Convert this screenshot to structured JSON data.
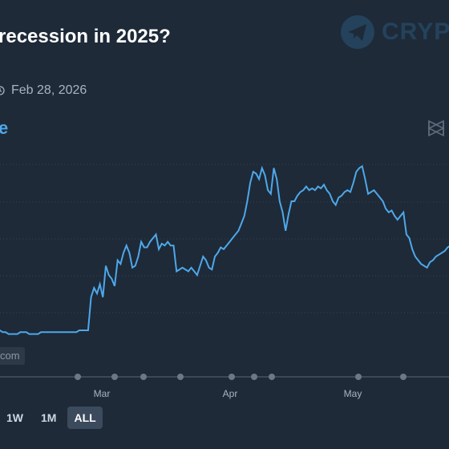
{
  "header": {
    "title": "recession in 2025?",
    "date": "Feb 28, 2026",
    "series_label": "e"
  },
  "brand": {
    "text": "CRYP",
    "icon": "telegram-plane-icon"
  },
  "watermark": {
    "text": "com"
  },
  "range_buttons": [
    {
      "label": "1W",
      "active": false
    },
    {
      "label": "1M",
      "active": false
    },
    {
      "label": "ALL",
      "active": true
    }
  ],
  "colors": {
    "background": "#1e2a38",
    "line": "#4ea8ea",
    "text_muted": "#a8b4c2"
  },
  "chart_data": {
    "type": "line",
    "title": "",
    "x_tick_labels": [
      "Mar",
      "Apr",
      "May"
    ],
    "ylim": [
      0,
      100
    ],
    "grid": true,
    "series": [
      {
        "values": [
          10,
          10,
          9,
          9,
          8,
          8,
          8,
          8,
          9,
          9,
          9,
          8,
          8,
          8,
          8,
          9,
          9,
          9,
          9,
          9,
          9,
          9,
          9,
          9,
          9,
          9,
          9,
          9,
          10,
          10,
          10,
          10,
          28,
          33,
          30,
          35,
          28,
          45,
          40,
          38,
          34,
          48,
          46,
          52,
          56,
          52,
          44,
          45,
          50,
          58,
          55,
          55,
          58,
          60,
          62,
          54,
          57,
          56,
          58,
          56,
          56,
          42,
          43,
          44,
          43,
          42,
          44,
          42,
          40,
          45,
          50,
          48,
          44,
          43,
          50,
          52,
          55,
          54,
          56,
          58,
          60,
          62,
          64,
          68,
          72,
          80,
          90,
          96,
          95,
          92,
          98,
          94,
          86,
          84,
          98,
          92,
          80,
          74,
          64,
          73,
          80,
          80,
          83,
          85,
          86,
          88,
          86,
          87,
          86,
          88,
          87,
          89,
          86,
          84,
          80,
          78,
          82,
          83,
          85,
          86,
          85,
          90,
          96,
          98,
          99,
          92,
          84,
          85,
          86,
          84,
          82,
          80,
          76,
          74,
          75,
          72,
          70,
          72,
          74,
          62,
          60,
          54,
          50,
          48,
          46,
          45,
          44,
          47,
          48,
          50,
          51,
          52,
          53,
          55,
          56
        ]
      }
    ]
  }
}
